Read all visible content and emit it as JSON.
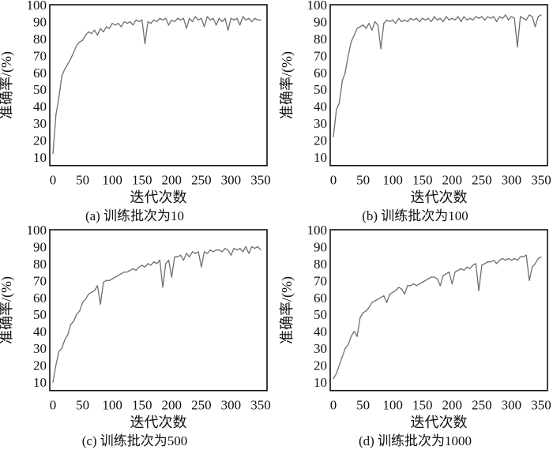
{
  "chart_data": [
    {
      "type": "line",
      "caption": "(a) 训练批次为10",
      "xlabel": "迭代次数",
      "ylabel": "准确率/(%)",
      "xlim": [
        0,
        350
      ],
      "ylim": [
        5,
        100
      ],
      "xticks": [
        0,
        50,
        100,
        150,
        200,
        250,
        300,
        350
      ],
      "yticks": [
        10,
        20,
        30,
        40,
        50,
        60,
        70,
        80,
        90,
        100
      ],
      "x_step": 5,
      "values": [
        12,
        35,
        45,
        58,
        62,
        65,
        68,
        72,
        76,
        78,
        79,
        82,
        84,
        83,
        85,
        82,
        86,
        84,
        87,
        86,
        89,
        88,
        89,
        87,
        90,
        89,
        90,
        88,
        91,
        90,
        91,
        77,
        90,
        89,
        91,
        90,
        92,
        91,
        92,
        88,
        91,
        90,
        92,
        91,
        92,
        86,
        92,
        90,
        93,
        91,
        92,
        87,
        93,
        91,
        92,
        88,
        92,
        90,
        92,
        85,
        92,
        91,
        92,
        88,
        93,
        91,
        92,
        90,
        92,
        91,
        91
      ],
      "line_color": "#6e6e6e"
    },
    {
      "type": "line",
      "caption": "(b) 训练批次为100",
      "xlabel": "迭代次数",
      "ylabel": "准确率/(%)",
      "xlim": [
        0,
        350
      ],
      "ylim": [
        5,
        100
      ],
      "xticks": [
        0,
        50,
        100,
        150,
        200,
        250,
        300,
        350
      ],
      "yticks": [
        10,
        20,
        30,
        40,
        50,
        60,
        70,
        80,
        90,
        100
      ],
      "x_step": 5,
      "values": [
        22,
        38,
        42,
        55,
        60,
        70,
        78,
        82,
        86,
        87,
        88,
        86,
        89,
        85,
        90,
        88,
        74,
        89,
        91,
        90,
        91,
        89,
        92,
        90,
        91,
        90,
        92,
        91,
        92,
        90,
        92,
        91,
        92,
        90,
        93,
        91,
        92,
        90,
        93,
        91,
        92,
        91,
        93,
        90,
        93,
        91,
        92,
        91,
        93,
        92,
        93,
        91,
        93,
        92,
        93,
        90,
        93,
        92,
        94,
        91,
        93,
        92,
        75,
        93,
        92,
        91,
        94,
        93,
        87,
        93,
        94
      ],
      "line_color": "#6e6e6e"
    },
    {
      "type": "line",
      "caption": "(c) 训练批次为500",
      "xlabel": "迭代次数",
      "ylabel": "准确率/(%)",
      "xlim": [
        0,
        350
      ],
      "ylim": [
        5,
        100
      ],
      "xticks": [
        0,
        50,
        100,
        150,
        200,
        250,
        300,
        350
      ],
      "yticks": [
        10,
        20,
        30,
        40,
        50,
        60,
        70,
        80,
        90,
        100
      ],
      "x_step": 5,
      "values": [
        10,
        20,
        28,
        30,
        35,
        38,
        44,
        46,
        50,
        52,
        57,
        59,
        62,
        63,
        64,
        67,
        56,
        69,
        70,
        70,
        71,
        72,
        73,
        74,
        75,
        75,
        76,
        77,
        76,
        78,
        79,
        78,
        80,
        79,
        81,
        80,
        82,
        66,
        80,
        82,
        72,
        84,
        84,
        85,
        82,
        86,
        84,
        87,
        86,
        87,
        78,
        87,
        86,
        88,
        87,
        88,
        88,
        87,
        89,
        88,
        85,
        89,
        88,
        89,
        87,
        90,
        86,
        90,
        89,
        90,
        88
      ],
      "line_color": "#6e6e6e"
    },
    {
      "type": "line",
      "caption": "(d) 训练批次为1000",
      "xlabel": "迭代次数",
      "ylabel": "准确率/(%)",
      "xlim": [
        0,
        350
      ],
      "ylim": [
        5,
        100
      ],
      "xticks": [
        0,
        50,
        100,
        150,
        200,
        250,
        300,
        350
      ],
      "yticks": [
        10,
        20,
        30,
        40,
        50,
        60,
        70,
        80,
        90,
        100
      ],
      "x_step": 5,
      "values": [
        12,
        15,
        20,
        25,
        30,
        32,
        37,
        40,
        37,
        48,
        51,
        52,
        54,
        57,
        58,
        59,
        60,
        61,
        57,
        62,
        63,
        64,
        66,
        65,
        62,
        67,
        67,
        68,
        67,
        68,
        69,
        70,
        71,
        72,
        72,
        71,
        67,
        73,
        74,
        75,
        68,
        75,
        76,
        77,
        76,
        78,
        77,
        79,
        80,
        64,
        79,
        80,
        81,
        81,
        82,
        80,
        82,
        83,
        82,
        83,
        82,
        83,
        82,
        84,
        84,
        85,
        70,
        78,
        80,
        83,
        84
      ],
      "line_color": "#6e6e6e"
    }
  ]
}
